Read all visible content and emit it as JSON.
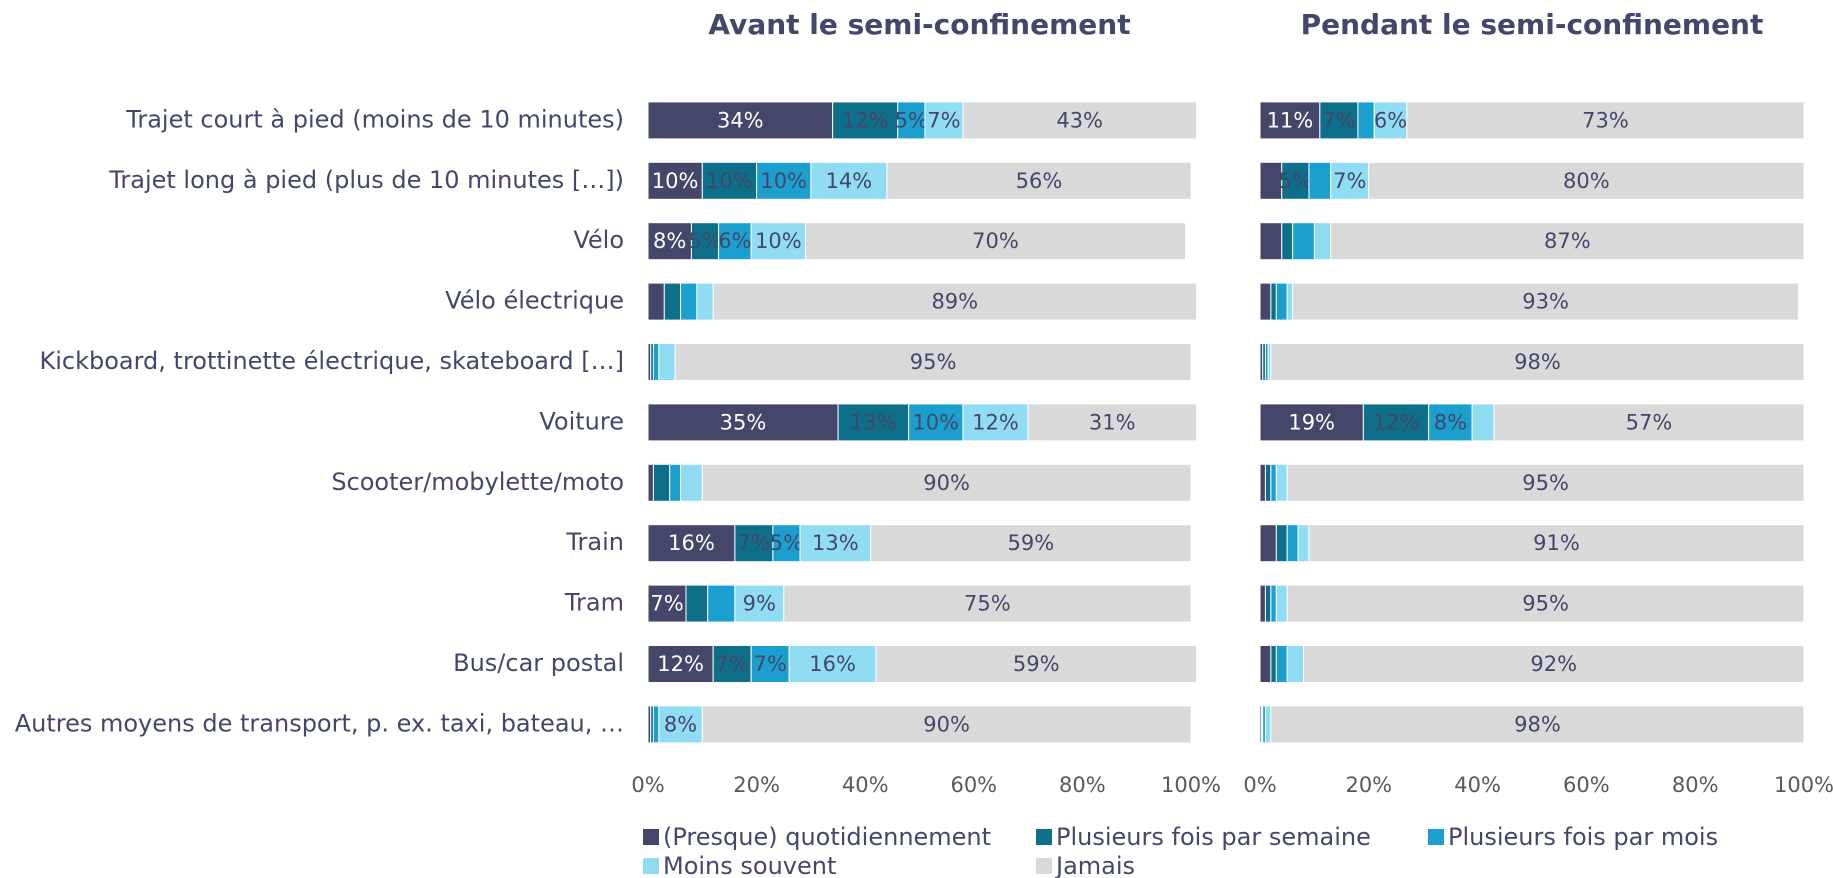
{
  "chart_data": [
    {
      "type": "stacked_barh",
      "title": "Avant le semi-confinement",
      "categories": [
        "Trajet court à pied (moins de 10 minutes)",
        "Trajet long à pied (plus de 10 minutes […])",
        "Vélo",
        "Vélo électrique",
        "Kickboard, trottinette électrique, skateboard […]",
        "Voiture",
        "Scooter/mobylette/moto",
        "Train",
        "Tram",
        "Bus/car postal",
        "Autres moyens de transport, p. ex. taxi, bateau, …"
      ],
      "xlim": [
        0,
        100
      ],
      "xticks": [
        {
          "value": 0,
          "label": "0%"
        },
        {
          "value": 20,
          "label": "20%"
        },
        {
          "value": 40,
          "label": "40%"
        },
        {
          "value": 60,
          "label": "60%"
        },
        {
          "value": 80,
          "label": "80%"
        },
        {
          "value": 100,
          "label": "100%"
        }
      ],
      "series": [
        {
          "name": "(Presque) quotidiennement",
          "color": "#44476a",
          "values": [
            34,
            10,
            8,
            3,
            0.5,
            35,
            1,
            16,
            7,
            12,
            0.5
          ],
          "value_labels": [
            "34%",
            "10%",
            "8%",
            null,
            null,
            "35%",
            null,
            "16%",
            "7%",
            "12%",
            null
          ]
        },
        {
          "name": "Plusieurs fois par semaine",
          "color": "#0e6f8a",
          "values": [
            12,
            10,
            5,
            3,
            0.5,
            13,
            3,
            7,
            4,
            7,
            0.5
          ],
          "value_labels": [
            "12%",
            "10%",
            "5%",
            null,
            null,
            "13%",
            null,
            "7%",
            null,
            "7%",
            null
          ]
        },
        {
          "name": "Plusieurs fois par mois",
          "color": "#1a9fcf",
          "values": [
            5,
            10,
            6,
            3,
            1,
            10,
            2,
            5,
            5,
            7,
            1
          ],
          "value_labels": [
            "5%",
            "10%",
            "6%",
            null,
            null,
            "10%",
            null,
            "5%",
            null,
            "7%",
            null
          ]
        },
        {
          "name": "Moins souvent",
          "color": "#8fdcf3",
          "values": [
            7,
            14,
            10,
            3,
            3,
            12,
            4,
            13,
            9,
            16,
            8
          ],
          "value_labels": [
            "7%",
            "14%",
            "10%",
            null,
            null,
            "12%",
            null,
            "13%",
            "9%",
            "16%",
            "8%"
          ]
        },
        {
          "name": "Jamais",
          "color": "#d9d9d9",
          "values": [
            43,
            56,
            70,
            89,
            95,
            31,
            90,
            59,
            75,
            59,
            90
          ],
          "value_labels": [
            "43%",
            "56%",
            "70%",
            "89%",
            "95%",
            "31%",
            "90%",
            "59%",
            "75%",
            "59%",
            "90%"
          ]
        }
      ]
    },
    {
      "type": "stacked_barh",
      "title": "Pendant le semi-confinement",
      "xlim": [
        0,
        100
      ],
      "xticks": [
        {
          "value": 0,
          "label": "0%"
        },
        {
          "value": 20,
          "label": "20%"
        },
        {
          "value": 40,
          "label": "40%"
        },
        {
          "value": 60,
          "label": "60%"
        },
        {
          "value": 80,
          "label": "80%"
        },
        {
          "value": 100,
          "label": "100%"
        }
      ],
      "series": [
        {
          "color": "#44476a",
          "values": [
            11,
            4,
            4,
            2,
            0.5,
            19,
            1,
            3,
            1,
            2,
            0.3
          ],
          "value_labels": [
            "11%",
            null,
            null,
            null,
            null,
            "19%",
            null,
            null,
            null,
            null,
            null
          ]
        },
        {
          "color": "#0e6f8a",
          "values": [
            7,
            5,
            2,
            1,
            0.5,
            12,
            1,
            2,
            1,
            1,
            0.2
          ],
          "value_labels": [
            "7%",
            "5%",
            null,
            null,
            null,
            "12%",
            null,
            null,
            null,
            null,
            null
          ]
        },
        {
          "color": "#1a9fcf",
          "values": [
            3,
            4,
            4,
            2,
            0.5,
            8,
            1,
            2,
            1,
            2,
            0.5
          ],
          "value_labels": [
            null,
            null,
            null,
            null,
            null,
            "8%",
            null,
            null,
            null,
            null,
            null
          ]
        },
        {
          "color": "#8fdcf3",
          "values": [
            6,
            7,
            3,
            1,
            0.5,
            4,
            2,
            2,
            2,
            3,
            1
          ],
          "value_labels": [
            "6%",
            "7%",
            null,
            null,
            null,
            null,
            null,
            null,
            null,
            null,
            null
          ]
        },
        {
          "color": "#d9d9d9",
          "values": [
            73,
            80,
            87,
            93,
            98,
            57,
            95,
            91,
            95,
            92,
            98
          ],
          "value_labels": [
            "73%",
            "80%",
            "87%",
            "93%",
            "98%",
            "57%",
            "95%",
            "91%",
            "95%",
            "92%",
            "98%"
          ]
        }
      ]
    }
  ]
}
